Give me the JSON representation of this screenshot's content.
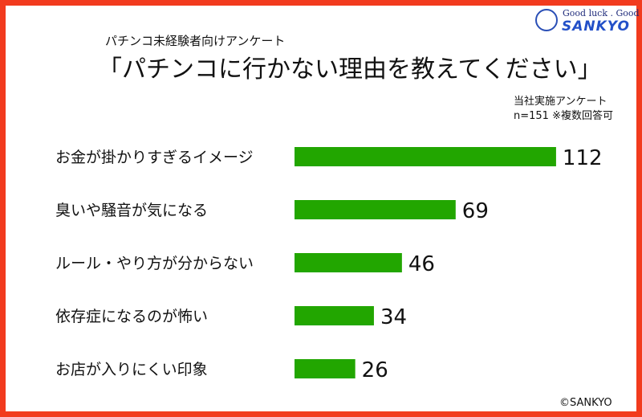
{
  "header": {
    "subtitle": "パチンコ未経験者向けアンケート",
    "title": "「パチンコに行かない理由を教えてください」"
  },
  "note": {
    "line1": "当社実施アンケート",
    "line2": "n=151 ※複数回答可"
  },
  "logo": {
    "tagline": "Good luck . Good life.",
    "brand": "SANKYO"
  },
  "footer": {
    "copyright": "©SANKYO"
  },
  "colors": {
    "bar": "#22a600",
    "frame": "#f23b1e",
    "text": "#111111"
  },
  "chart_data": {
    "type": "bar",
    "orientation": "horizontal",
    "categories": [
      "お金が掛かりすぎるイメージ",
      "臭いや騒音が気になる",
      "ルール・やり方が分からない",
      "依存症になるのが怖い",
      "お店が入りにくい印象"
    ],
    "values": [
      112,
      69,
      46,
      34,
      26
    ],
    "data_labels": [
      "112",
      "69",
      "46",
      "34",
      "26"
    ],
    "grid": false,
    "legend": "none"
  }
}
